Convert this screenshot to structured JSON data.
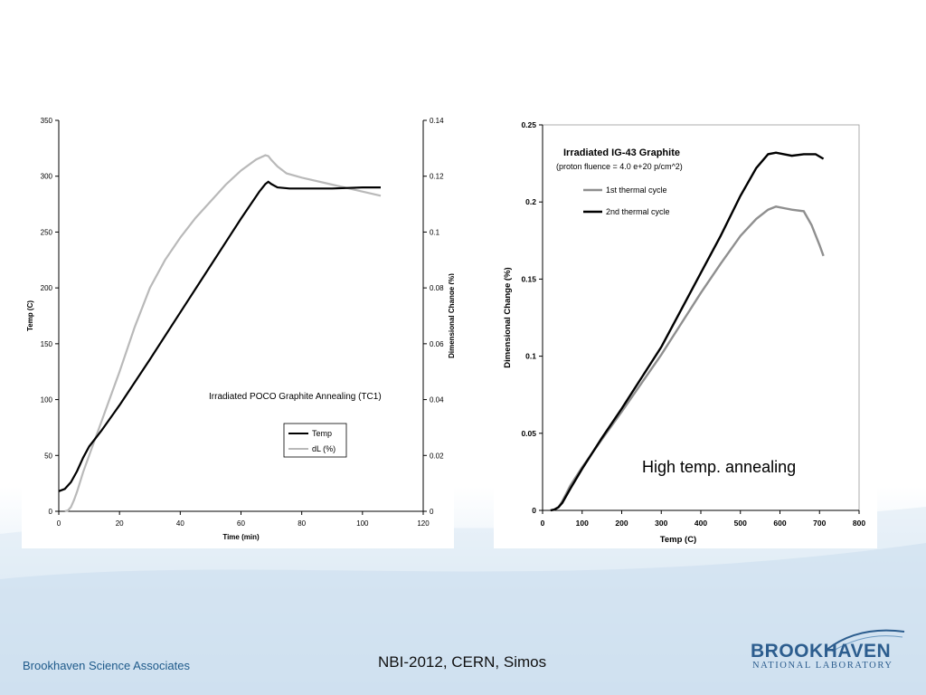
{
  "colors": {
    "series_black": "#000000",
    "series_gray": "#b9b9b9",
    "series_gray_dark": "#8f8f8f",
    "brand_blue": "#2c5d8e",
    "background_tint": "#cfe0ee"
  },
  "chart_data": [
    {
      "type": "line",
      "title": "Irradiated POCO Graphite Annealing (TC1)",
      "xlabel": "Time (min)",
      "ylabel": "Temp (C)",
      "y2label": "Dimensional Change (%)",
      "xlim": [
        0,
        120
      ],
      "ylim": [
        0,
        350
      ],
      "y2lim": [
        0,
        0.14
      ],
      "xticks": [
        "0",
        "20",
        "40",
        "60",
        "80",
        "100",
        "120"
      ],
      "yticks": [
        "0",
        "50",
        "100",
        "150",
        "200",
        "250",
        "300",
        "350"
      ],
      "y2ticks": [
        "0",
        "0.02",
        "0.04",
        "0.06",
        "0.08",
        "0.1",
        "0.12",
        "0.14"
      ],
      "grid": false,
      "legend": "center-right",
      "series": [
        {
          "name": "Temp",
          "axis": "left",
          "x": [
            0,
            2,
            4,
            6,
            8,
            10,
            14,
            20,
            30,
            40,
            50,
            60,
            66,
            68,
            69,
            70,
            72,
            76,
            80,
            90,
            100,
            106
          ],
          "y": [
            18,
            20,
            26,
            36,
            48,
            58,
            72,
            95,
            136,
            178,
            220,
            262,
            286,
            293,
            295,
            293,
            290,
            289,
            289,
            289,
            290,
            290
          ]
        },
        {
          "name": "dL (%)",
          "axis": "right",
          "x": [
            2,
            3,
            4,
            5,
            6,
            8,
            10,
            15,
            20,
            25,
            30,
            35,
            40,
            45,
            50,
            55,
            60,
            65,
            68,
            69,
            70,
            72,
            75,
            80,
            90,
            100,
            106
          ],
          "y": [
            0,
            0.0003,
            0.0015,
            0.004,
            0.007,
            0.014,
            0.02,
            0.035,
            0.05,
            0.066,
            0.08,
            0.09,
            0.098,
            0.105,
            0.111,
            0.117,
            0.122,
            0.126,
            0.1275,
            0.1272,
            0.1258,
            0.1235,
            0.121,
            0.1195,
            0.117,
            0.1145,
            0.113
          ]
        }
      ]
    },
    {
      "type": "line",
      "title": "Irradiated IG-43 Graphite",
      "subtitle": "(proton fluence = 4.0 e+20 p/cm^2)",
      "xlabel": "Temp (C)",
      "ylabel": "Dimensional Change (%)",
      "xlim": [
        0,
        800
      ],
      "ylim": [
        0,
        0.25
      ],
      "xticks": [
        "0",
        "100",
        "200",
        "300",
        "400",
        "500",
        "600",
        "700",
        "800"
      ],
      "yticks": [
        "0",
        "0.05",
        "0.1",
        "0.15",
        "0.2",
        "0.25"
      ],
      "grid": false,
      "legend": "top-left",
      "annotation": "High temp. annealing",
      "series": [
        {
          "name": "1st thermal cycle",
          "x": [
            20,
            30,
            40,
            50,
            70,
            100,
            150,
            200,
            300,
            400,
            450,
            500,
            540,
            570,
            590,
            610,
            630,
            660,
            680,
            700,
            710
          ],
          "y": [
            0,
            0.0005,
            0.002,
            0.006,
            0.016,
            0.028,
            0.046,
            0.064,
            0.101,
            0.141,
            0.16,
            0.178,
            0.189,
            0.195,
            0.197,
            0.196,
            0.195,
            0.194,
            0.185,
            0.172,
            0.165
          ]
        },
        {
          "name": "2nd thermal cycle",
          "x": [
            20,
            30,
            40,
            50,
            70,
            100,
            150,
            200,
            300,
            400,
            450,
            500,
            540,
            570,
            590,
            610,
            630,
            660,
            690,
            710
          ],
          "y": [
            0,
            0.0005,
            0.002,
            0.005,
            0.014,
            0.027,
            0.047,
            0.066,
            0.106,
            0.154,
            0.178,
            0.204,
            0.222,
            0.231,
            0.232,
            0.231,
            0.23,
            0.231,
            0.231,
            0.228
          ]
        }
      ]
    }
  ],
  "footer": {
    "left_text": "Brookhaven Science Associates",
    "center_text": "NBI-2012, CERN, Simos"
  },
  "logo": {
    "main": "BROOKHAVEN",
    "sub": "NATIONAL LABORATORY"
  }
}
